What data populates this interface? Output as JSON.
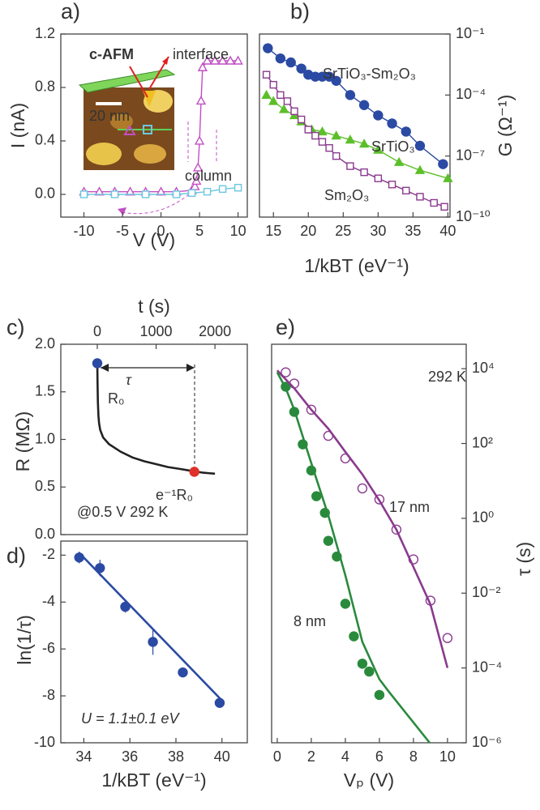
{
  "chart_data": [
    {
      "panel_label": "a)",
      "type": "line",
      "x_label": "V (V)",
      "y_label": "I (nA)",
      "xlim": [
        -13,
        11.2
      ],
      "ylim": [
        -0.17,
        1.2
      ],
      "xticks": [
        -10,
        -5,
        0,
        5,
        10
      ],
      "yticks": [
        {
          "value": 0,
          "label": "0.0"
        },
        0.4,
        0.8,
        1.2
      ],
      "annotations": [
        "c-AFM",
        "20 nm"
      ],
      "series": [
        {
          "name": "interface",
          "color": "#c24fc4",
          "marker": "triangle",
          "filled": false,
          "line": true,
          "x": [
            -10,
            -8,
            -6,
            -4,
            -2,
            0,
            2,
            4,
            4.4,
            4.6,
            4.8,
            5,
            5.2,
            5.4,
            6,
            7,
            8,
            9,
            10
          ],
          "values": [
            0.02,
            0.02,
            0.02,
            0.02,
            0.02,
            0.02,
            0.02,
            0.03,
            0.06,
            0.1,
            0.2,
            0.4,
            0.7,
            0.95,
            1.0,
            1.0,
            1.0,
            1.0,
            1.0
          ]
        },
        {
          "name": "column",
          "color": "#6cc7e0",
          "marker": "square",
          "filled": false,
          "line": true,
          "x": [
            -10,
            -6,
            -2,
            2,
            4,
            6,
            8,
            10
          ],
          "values": [
            0,
            0,
            0,
            0,
            0.01,
            0.02,
            0.04,
            0.05
          ]
        }
      ]
    },
    {
      "panel_label": "b)",
      "type": "scatter",
      "x_label": "1/kBT (eV⁻¹)",
      "y_label": "G (Ω⁻¹)",
      "yscale": "log",
      "y_axis_side": "right",
      "xlim": [
        13,
        40.3
      ],
      "ylim": [
        1e-10,
        0.1
      ],
      "xticks": [
        15,
        20,
        25,
        30,
        35,
        40
      ],
      "yticks": [
        {
          "value": 1e-10,
          "label": "10⁻¹⁰"
        },
        {
          "value": 1e-07,
          "label": "10⁻⁷"
        },
        {
          "value": 0.0001,
          "label": "10⁻⁴"
        },
        {
          "value": 0.1,
          "label": "10⁻¹"
        }
      ],
      "series": [
        {
          "name": "SrTiO₃-Sm₂O₃",
          "color": "#2b4aa3",
          "marker": "circle",
          "filled": true,
          "line": true,
          "x": [
            14.2,
            16,
            17.5,
            19,
            20,
            21,
            22,
            23,
            24,
            26,
            28,
            30,
            32,
            34,
            36,
            39.3
          ],
          "values": [
            0.02,
            0.0063,
            0.004,
            0.002,
            0.001,
            0.0008,
            0.0008,
            0.0008,
            0.0005,
            0.0001,
            3.2e-05,
            1e-05,
            4e-06,
            1.6e-06,
            3.2e-07,
            4e-08
          ]
        },
        {
          "name": "SrTiO₃",
          "color": "#5cbf2a",
          "marker": "triangle",
          "filled": true,
          "line": true,
          "x": [
            14,
            15,
            16.5,
            18,
            19,
            20.5,
            22,
            24,
            26,
            28,
            30,
            33,
            36,
            40
          ],
          "values": [
            0.0001,
            5e-05,
            2e-05,
            1e-05,
            5e-06,
            2e-06,
            1.6e-06,
            1e-06,
            6.3e-07,
            4e-07,
            2e-07,
            5e-08,
            2e-08,
            8e-09
          ]
        },
        {
          "name": "Sm₂O₃",
          "color": "#8a3a8e",
          "marker": "square",
          "filled": false,
          "line": true,
          "x": [
            14,
            15,
            16,
            17,
            18,
            19,
            20,
            21,
            22,
            23,
            24,
            26,
            28,
            30,
            32,
            34,
            36,
            38,
            39.5
          ],
          "values": [
            0.001,
            0.00032,
            0.0001,
            5e-05,
            1.6e-05,
            6.3e-06,
            2e-06,
            1e-06,
            5e-07,
            2.5e-07,
            1e-07,
            3.2e-08,
            1.6e-08,
            8e-09,
            4e-09,
            2e-09,
            1e-09,
            5e-10,
            3.2e-10
          ]
        }
      ]
    },
    {
      "panel_label": "c)",
      "type": "line",
      "x_label": "t (s)",
      "y_label": "R (MΩ)",
      "x_axis_side": "top",
      "xlim": [
        -620,
        2550
      ],
      "ylim": [
        0,
        2
      ],
      "xticks": [
        0,
        1000,
        2000
      ],
      "yticks": [
        {
          "value": 0,
          "label": "0.0"
        },
        0.5,
        {
          "value": 1,
          "label": "1.0"
        },
        1.5,
        {
          "value": 2,
          "label": "2.0"
        }
      ],
      "annotations": [
        "τ",
        "@0.5 V 292 K"
      ],
      "series": [
        {
          "color": "#222222",
          "marker": "none",
          "line": true,
          "x": [
            0,
            5,
            10,
            20,
            30,
            50,
            100,
            200,
            400,
            600,
            800,
            1000,
            1200,
            1400,
            1600,
            1800,
            2000
          ],
          "values": [
            1.8,
            1.6,
            1.4,
            1.25,
            1.17,
            1.1,
            1.02,
            0.95,
            0.87,
            0.81,
            0.77,
            0.74,
            0.71,
            0.69,
            0.67,
            0.65,
            0.64
          ]
        },
        {
          "name": "R₀",
          "color": "#2b4aa3",
          "marker": "circle",
          "filled": true,
          "line": false,
          "x": [
            0
          ],
          "values": [
            1.8
          ]
        },
        {
          "name": "e⁻¹R₀",
          "color": "#e0302a",
          "marker": "circle",
          "filled": true,
          "line": false,
          "x": [
            1650
          ],
          "values": [
            0.66
          ]
        }
      ]
    },
    {
      "panel_label": "d)",
      "type": "scatter",
      "x_label": "1/kBT (eV⁻¹)",
      "y_label": "ln(1/τ)",
      "xlim": [
        33,
        41.1
      ],
      "ylim": [
        -10,
        -1.4
      ],
      "xticks": [
        34,
        36,
        38,
        40
      ],
      "yticks": [
        -10,
        -8,
        -6,
        -4,
        -2
      ],
      "annotations": [
        "U = 1.1±0.1 eV"
      ],
      "series": [
        {
          "color": "#2b4aa3",
          "marker": "circle",
          "filled": true,
          "line": false,
          "x": [
            33.8,
            34.7,
            35.8,
            37,
            38.3,
            39.9
          ],
          "values": [
            -2.1,
            -2.55,
            -4.2,
            -5.7,
            -7.0,
            -8.3
          ],
          "errors": [
            0.25,
            0.35,
            0.25,
            0.55,
            0.2,
            0.15
          ]
        },
        {
          "color": "#2b4aa3",
          "marker": "none",
          "line": true,
          "x": [
            33.8,
            40
          ],
          "values": [
            -1.9,
            -8.2
          ]
        }
      ]
    },
    {
      "panel_label": "e)",
      "type": "scatter",
      "x_label": "Vₚ (V)",
      "y_label": "τ (s)",
      "yscale": "log",
      "y_axis_side": "right",
      "xlim": [
        -0.33,
        11.1
      ],
      "ylim": [
        1e-06,
        45000
      ],
      "xticks": [
        0,
        2,
        4,
        6,
        8,
        10
      ],
      "yticks": [
        {
          "value": 1e-06,
          "label": "10⁻⁶"
        },
        {
          "value": 0.0001,
          "label": "10⁻⁴"
        },
        {
          "value": 0.01,
          "label": "10⁻²"
        },
        {
          "value": 1,
          "label": "10⁰"
        },
        {
          "value": 100,
          "label": "10²"
        },
        {
          "value": 10000,
          "label": "10⁴"
        }
      ],
      "annotations": [
        "292 K"
      ],
      "series": [
        {
          "name": "17 nm",
          "color": "#8a3a8e",
          "marker": "circle",
          "filled": false,
          "line": false,
          "x": [
            0.5,
            1,
            2,
            3,
            4,
            5,
            6,
            7,
            8,
            9,
            10
          ],
          "values": [
            8000,
            4000,
            800,
            160,
            40,
            6.3,
            3.2,
            0.5,
            0.08,
            0.0063,
            0.00063
          ]
        },
        {
          "name": "8 nm",
          "color": "#2a8a3c",
          "marker": "circle",
          "filled": true,
          "line": false,
          "x": [
            0.5,
            1,
            1.5,
            2,
            2.3,
            2.8,
            3,
            3.5,
            4,
            4.5,
            5,
            5.4,
            6
          ],
          "values": [
            3300,
            700,
            95,
            19,
            3.9,
            1.4,
            0.25,
            0.095,
            0.0052,
            0.0007,
            0.00013,
            8e-05,
            1.9e-05
          ]
        },
        {
          "color": "#8a3a8e",
          "marker": "none",
          "line": true,
          "x": [
            0,
            1,
            2,
            3,
            4,
            5,
            6,
            7,
            8,
            9,
            10
          ],
          "values": [
            9000,
            3000,
            800,
            250,
            60,
            15,
            3,
            0.5,
            0.05,
            0.005,
            0.0001
          ]
        },
        {
          "color": "#2a8a3c",
          "marker": "none",
          "line": true,
          "x": [
            0,
            0.5,
            1,
            2,
            3,
            4,
            5,
            6,
            6.5,
            8.95
          ],
          "values": [
            8000,
            3000,
            800,
            30,
            1.2,
            0.03,
            0.0005,
            5e-05,
            2.5e-05,
            1e-06
          ]
        }
      ]
    }
  ]
}
